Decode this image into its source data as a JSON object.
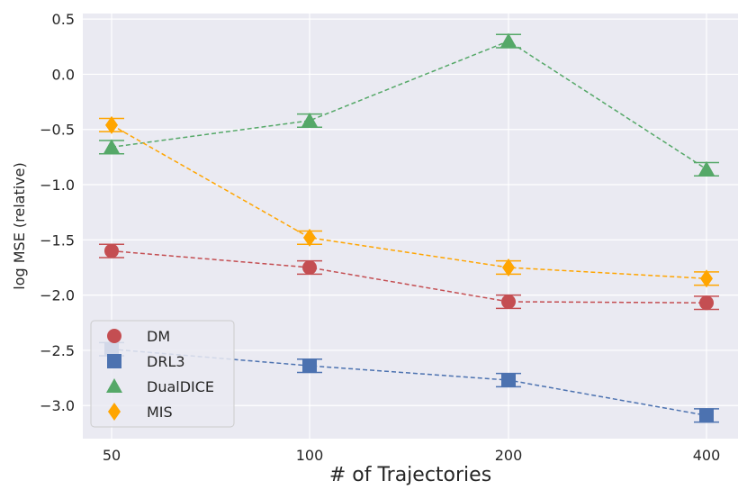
{
  "chart_data": {
    "type": "line",
    "title": "",
    "xlabel": "# of Trajectories",
    "ylabel": "log MSE (relative)",
    "categories": [
      "50",
      "100",
      "200",
      "400"
    ],
    "yticks": [
      "0.5",
      "0.0",
      "−0.5",
      "−1.0",
      "−1.5",
      "−2.0",
      "−2.5",
      "−3.0"
    ],
    "ytick_values": [
      0.5,
      0.0,
      -0.5,
      -1.0,
      -1.5,
      -2.0,
      -2.5,
      -3.0
    ],
    "ylim": [
      -3.3,
      0.55
    ],
    "grid": true,
    "legend_position": "bottom-left",
    "series": [
      {
        "name": "DM",
        "marker": "circle",
        "color": "#c44e52",
        "values": [
          -1.6,
          -1.75,
          -2.06,
          -2.07
        ],
        "errors": [
          0.06,
          0.06,
          0.06,
          0.06
        ]
      },
      {
        "name": "DRL3",
        "marker": "square",
        "color": "#4c72b0",
        "values": [
          -2.49,
          -2.64,
          -2.77,
          -3.09
        ],
        "errors": [
          0.06,
          0.06,
          0.06,
          0.06
        ]
      },
      {
        "name": "DualDICE",
        "marker": "triangle",
        "color": "#55a868",
        "values": [
          -0.66,
          -0.42,
          0.3,
          -0.86
        ],
        "errors": [
          0.06,
          0.06,
          0.06,
          0.06
        ]
      },
      {
        "name": "MIS",
        "marker": "diamond",
        "color": "#ffa500",
        "values": [
          -0.46,
          -1.48,
          -1.75,
          -1.85
        ],
        "errors": [
          0.06,
          0.06,
          0.06,
          0.06
        ]
      }
    ]
  },
  "colors": {
    "plot_background": "#eaeaf2",
    "grid": "#ffffff",
    "legend_background": "#eaeaf2",
    "legend_border": "#cccccc"
  }
}
